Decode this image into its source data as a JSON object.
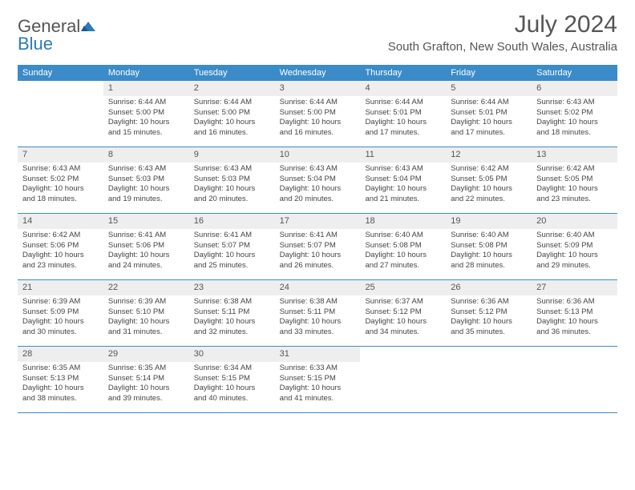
{
  "logo": {
    "text1": "General",
    "text2": "Blue"
  },
  "title": "July 2024",
  "location": "South Grafton, New South Wales, Australia",
  "colors": {
    "header_bg": "#3b8bc8",
    "header_text": "#ffffff",
    "daynum_bg": "#eeeeee",
    "border": "#3b8bc8",
    "text": "#444444"
  },
  "day_headers": [
    "Sunday",
    "Monday",
    "Tuesday",
    "Wednesday",
    "Thursday",
    "Friday",
    "Saturday"
  ],
  "weeks": [
    [
      {
        "n": "",
        "sr": "",
        "ss": "",
        "dl": ""
      },
      {
        "n": "1",
        "sr": "Sunrise: 6:44 AM",
        "ss": "Sunset: 5:00 PM",
        "dl": "Daylight: 10 hours and 15 minutes."
      },
      {
        "n": "2",
        "sr": "Sunrise: 6:44 AM",
        "ss": "Sunset: 5:00 PM",
        "dl": "Daylight: 10 hours and 16 minutes."
      },
      {
        "n": "3",
        "sr": "Sunrise: 6:44 AM",
        "ss": "Sunset: 5:00 PM",
        "dl": "Daylight: 10 hours and 16 minutes."
      },
      {
        "n": "4",
        "sr": "Sunrise: 6:44 AM",
        "ss": "Sunset: 5:01 PM",
        "dl": "Daylight: 10 hours and 17 minutes."
      },
      {
        "n": "5",
        "sr": "Sunrise: 6:44 AM",
        "ss": "Sunset: 5:01 PM",
        "dl": "Daylight: 10 hours and 17 minutes."
      },
      {
        "n": "6",
        "sr": "Sunrise: 6:43 AM",
        "ss": "Sunset: 5:02 PM",
        "dl": "Daylight: 10 hours and 18 minutes."
      }
    ],
    [
      {
        "n": "7",
        "sr": "Sunrise: 6:43 AM",
        "ss": "Sunset: 5:02 PM",
        "dl": "Daylight: 10 hours and 18 minutes."
      },
      {
        "n": "8",
        "sr": "Sunrise: 6:43 AM",
        "ss": "Sunset: 5:03 PM",
        "dl": "Daylight: 10 hours and 19 minutes."
      },
      {
        "n": "9",
        "sr": "Sunrise: 6:43 AM",
        "ss": "Sunset: 5:03 PM",
        "dl": "Daylight: 10 hours and 20 minutes."
      },
      {
        "n": "10",
        "sr": "Sunrise: 6:43 AM",
        "ss": "Sunset: 5:04 PM",
        "dl": "Daylight: 10 hours and 20 minutes."
      },
      {
        "n": "11",
        "sr": "Sunrise: 6:43 AM",
        "ss": "Sunset: 5:04 PM",
        "dl": "Daylight: 10 hours and 21 minutes."
      },
      {
        "n": "12",
        "sr": "Sunrise: 6:42 AM",
        "ss": "Sunset: 5:05 PM",
        "dl": "Daylight: 10 hours and 22 minutes."
      },
      {
        "n": "13",
        "sr": "Sunrise: 6:42 AM",
        "ss": "Sunset: 5:05 PM",
        "dl": "Daylight: 10 hours and 23 minutes."
      }
    ],
    [
      {
        "n": "14",
        "sr": "Sunrise: 6:42 AM",
        "ss": "Sunset: 5:06 PM",
        "dl": "Daylight: 10 hours and 23 minutes."
      },
      {
        "n": "15",
        "sr": "Sunrise: 6:41 AM",
        "ss": "Sunset: 5:06 PM",
        "dl": "Daylight: 10 hours and 24 minutes."
      },
      {
        "n": "16",
        "sr": "Sunrise: 6:41 AM",
        "ss": "Sunset: 5:07 PM",
        "dl": "Daylight: 10 hours and 25 minutes."
      },
      {
        "n": "17",
        "sr": "Sunrise: 6:41 AM",
        "ss": "Sunset: 5:07 PM",
        "dl": "Daylight: 10 hours and 26 minutes."
      },
      {
        "n": "18",
        "sr": "Sunrise: 6:40 AM",
        "ss": "Sunset: 5:08 PM",
        "dl": "Daylight: 10 hours and 27 minutes."
      },
      {
        "n": "19",
        "sr": "Sunrise: 6:40 AM",
        "ss": "Sunset: 5:08 PM",
        "dl": "Daylight: 10 hours and 28 minutes."
      },
      {
        "n": "20",
        "sr": "Sunrise: 6:40 AM",
        "ss": "Sunset: 5:09 PM",
        "dl": "Daylight: 10 hours and 29 minutes."
      }
    ],
    [
      {
        "n": "21",
        "sr": "Sunrise: 6:39 AM",
        "ss": "Sunset: 5:09 PM",
        "dl": "Daylight: 10 hours and 30 minutes."
      },
      {
        "n": "22",
        "sr": "Sunrise: 6:39 AM",
        "ss": "Sunset: 5:10 PM",
        "dl": "Daylight: 10 hours and 31 minutes."
      },
      {
        "n": "23",
        "sr": "Sunrise: 6:38 AM",
        "ss": "Sunset: 5:11 PM",
        "dl": "Daylight: 10 hours and 32 minutes."
      },
      {
        "n": "24",
        "sr": "Sunrise: 6:38 AM",
        "ss": "Sunset: 5:11 PM",
        "dl": "Daylight: 10 hours and 33 minutes."
      },
      {
        "n": "25",
        "sr": "Sunrise: 6:37 AM",
        "ss": "Sunset: 5:12 PM",
        "dl": "Daylight: 10 hours and 34 minutes."
      },
      {
        "n": "26",
        "sr": "Sunrise: 6:36 AM",
        "ss": "Sunset: 5:12 PM",
        "dl": "Daylight: 10 hours and 35 minutes."
      },
      {
        "n": "27",
        "sr": "Sunrise: 6:36 AM",
        "ss": "Sunset: 5:13 PM",
        "dl": "Daylight: 10 hours and 36 minutes."
      }
    ],
    [
      {
        "n": "28",
        "sr": "Sunrise: 6:35 AM",
        "ss": "Sunset: 5:13 PM",
        "dl": "Daylight: 10 hours and 38 minutes."
      },
      {
        "n": "29",
        "sr": "Sunrise: 6:35 AM",
        "ss": "Sunset: 5:14 PM",
        "dl": "Daylight: 10 hours and 39 minutes."
      },
      {
        "n": "30",
        "sr": "Sunrise: 6:34 AM",
        "ss": "Sunset: 5:15 PM",
        "dl": "Daylight: 10 hours and 40 minutes."
      },
      {
        "n": "31",
        "sr": "Sunrise: 6:33 AM",
        "ss": "Sunset: 5:15 PM",
        "dl": "Daylight: 10 hours and 41 minutes."
      },
      {
        "n": "",
        "sr": "",
        "ss": "",
        "dl": ""
      },
      {
        "n": "",
        "sr": "",
        "ss": "",
        "dl": ""
      },
      {
        "n": "",
        "sr": "",
        "ss": "",
        "dl": ""
      }
    ]
  ]
}
